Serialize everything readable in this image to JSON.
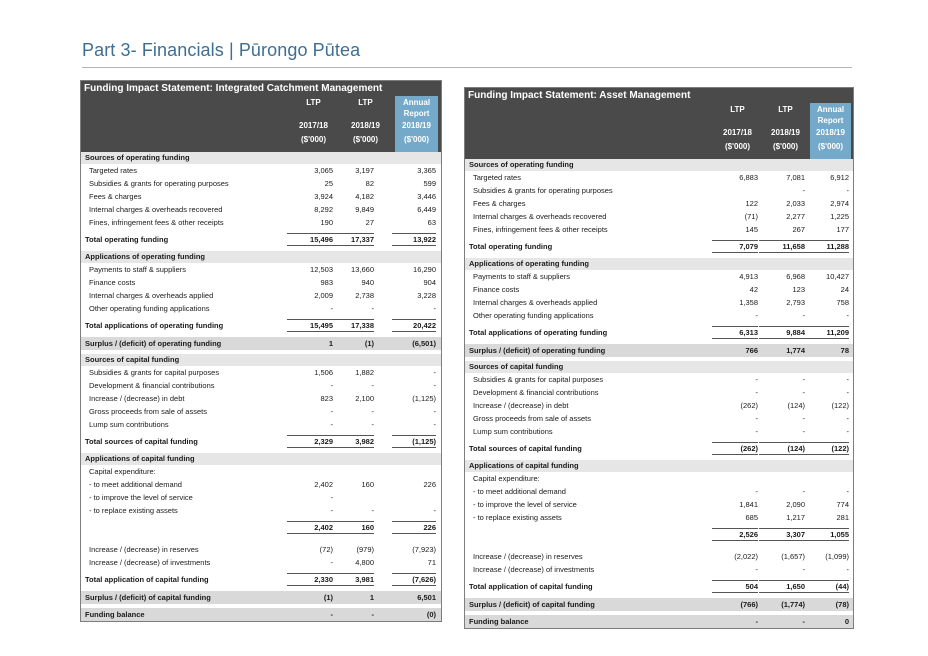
{
  "page": {
    "title": "Part 3- Financials | Pūrongo Pūtea"
  },
  "left": {
    "title": "Funding Impact Statement: Integrated Catchment Management",
    "headers": {
      "c1": [
        "LTP",
        "",
        "2017/18",
        "($'000)"
      ],
      "c2": [
        "LTP",
        "",
        "2018/19",
        "($'000)"
      ],
      "c3": [
        "Annual",
        "Report",
        "2018/19",
        "($'000)"
      ]
    },
    "rows": [
      {
        "type": "band",
        "label": "Sources of operating funding"
      },
      {
        "type": "item",
        "label": "Targeted rates",
        "v": [
          "3,065",
          "3,197",
          "3,365"
        ]
      },
      {
        "type": "item",
        "label": "Subsidies & grants for operating purposes",
        "v": [
          "25",
          "82",
          "599"
        ]
      },
      {
        "type": "item",
        "label": "Fees & charges",
        "v": [
          "3,924",
          "4,182",
          "3,446"
        ]
      },
      {
        "type": "item",
        "label": "Internal charges & overheads recovered",
        "v": [
          "8,292",
          "9,849",
          "6,449"
        ]
      },
      {
        "type": "item",
        "label": "Fines, infringement fees & other receipts",
        "v": [
          "190",
          "27",
          "63"
        ]
      },
      {
        "type": "gap"
      },
      {
        "type": "total",
        "label": "Total operating funding",
        "v": [
          "15,496",
          "17,337",
          "13,922"
        ]
      },
      {
        "type": "gap"
      },
      {
        "type": "band",
        "label": "Applications of operating funding"
      },
      {
        "type": "item",
        "label": "Payments to staff & suppliers",
        "v": [
          "12,503",
          "13,660",
          "16,290"
        ]
      },
      {
        "type": "item",
        "label": "Finance costs",
        "v": [
          "983",
          "940",
          "904"
        ]
      },
      {
        "type": "item",
        "label": "Internal charges & overheads applied",
        "v": [
          "2,009",
          "2,738",
          "3,228"
        ]
      },
      {
        "type": "item",
        "label": "Other operating funding applications",
        "v": [
          "-",
          "-",
          "-"
        ]
      },
      {
        "type": "gap"
      },
      {
        "type": "total",
        "label": "Total applications of operating funding",
        "v": [
          "15,495",
          "17,338",
          "20,422"
        ]
      },
      {
        "type": "gap"
      },
      {
        "type": "banddark",
        "label": "Surplus / (deficit) of operating funding",
        "v": [
          "1",
          "(1)",
          "(6,501)"
        ]
      },
      {
        "type": "gap"
      },
      {
        "type": "band",
        "label": "Sources of capital funding"
      },
      {
        "type": "item",
        "label": "Subsidies & grants for capital purposes",
        "v": [
          "1,506",
          "1,882",
          "-"
        ]
      },
      {
        "type": "item",
        "label": "Development & financial contributions",
        "v": [
          "-",
          "-",
          "-"
        ]
      },
      {
        "type": "item",
        "label": "Increase / (decrease) in debt",
        "v": [
          "823",
          "2,100",
          "(1,125)"
        ]
      },
      {
        "type": "item",
        "label": "Gross proceeds from sale of assets",
        "v": [
          "-",
          "-",
          "-"
        ]
      },
      {
        "type": "item",
        "label": "Lump sum contributions",
        "v": [
          "-",
          "-",
          "-"
        ]
      },
      {
        "type": "gap"
      },
      {
        "type": "total",
        "label": "Total sources of capital funding",
        "v": [
          "2,329",
          "3,982",
          "(1,125)"
        ]
      },
      {
        "type": "gap"
      },
      {
        "type": "band",
        "label": "Applications of capital funding"
      },
      {
        "type": "item",
        "label": "Capital expenditure:",
        "v": [
          "",
          "",
          ""
        ]
      },
      {
        "type": "item",
        "label": "- to meet additional demand",
        "v": [
          "2,402",
          "160",
          "226"
        ]
      },
      {
        "type": "item",
        "label": "- to improve the level of service",
        "v": [
          "-",
          "",
          ""
        ]
      },
      {
        "type": "item",
        "label": "- to replace existing assets",
        "v": [
          "-",
          "-",
          "-"
        ]
      },
      {
        "type": "gap"
      },
      {
        "type": "total",
        "label": "",
        "v": [
          "2,402",
          "160",
          "226"
        ]
      },
      {
        "type": "gap"
      },
      {
        "type": "gap"
      },
      {
        "type": "item",
        "label": "Increase / (decrease) in reserves",
        "v": [
          "(72)",
          "(979)",
          "(7,923)"
        ]
      },
      {
        "type": "item",
        "label": "Increase / (decrease) of investments",
        "v": [
          "-",
          "4,800",
          "71"
        ]
      },
      {
        "type": "gap"
      },
      {
        "type": "total",
        "label": "Total application of capital funding",
        "v": [
          "2,330",
          "3,981",
          "(7,626)"
        ]
      },
      {
        "type": "gap"
      },
      {
        "type": "banddark",
        "label": "Surplus / (deficit) of capital funding",
        "v": [
          "(1)",
          "1",
          "6,501"
        ]
      },
      {
        "type": "gap"
      },
      {
        "type": "banddark",
        "label": "Funding balance",
        "v": [
          "-",
          "-",
          "(0)"
        ]
      }
    ]
  },
  "right": {
    "title": "Funding Impact Statement: Asset Management",
    "headers": {
      "c1": [
        "LTP",
        "",
        "2017/18",
        "($'000)"
      ],
      "c2": [
        "LTP",
        "",
        "2018/19",
        "($'000)"
      ],
      "c3": [
        "Annual",
        "Report",
        "2018/19",
        "($'000)"
      ]
    },
    "rows": [
      {
        "type": "band",
        "label": "Sources of operating funding"
      },
      {
        "type": "item",
        "label": "Targeted rates",
        "v": [
          "6,883",
          "7,081",
          "6,912"
        ]
      },
      {
        "type": "item",
        "label": "Subsidies & grants for operating purposes",
        "v": [
          "",
          "-",
          "-"
        ]
      },
      {
        "type": "item",
        "label": "Fees & charges",
        "v": [
          "122",
          "2,033",
          "2,974"
        ]
      },
      {
        "type": "item",
        "label": "Internal charges & overheads recovered",
        "v": [
          "(71)",
          "2,277",
          "1,225"
        ]
      },
      {
        "type": "item",
        "label": "Fines, infringement fees & other receipts",
        "v": [
          "145",
          "267",
          "177"
        ]
      },
      {
        "type": "gap"
      },
      {
        "type": "total",
        "label": "Total operating funding",
        "v": [
          "7,079",
          "11,658",
          "11,288"
        ]
      },
      {
        "type": "gap"
      },
      {
        "type": "band",
        "label": "Applications of operating funding"
      },
      {
        "type": "item",
        "label": "Payments to staff & suppliers",
        "v": [
          "4,913",
          "6,968",
          "10,427"
        ]
      },
      {
        "type": "item",
        "label": "Finance costs",
        "v": [
          "42",
          "123",
          "24"
        ]
      },
      {
        "type": "item",
        "label": "Internal charges & overheads applied",
        "v": [
          "1,358",
          "2,793",
          "758"
        ]
      },
      {
        "type": "item",
        "label": "Other operating funding applications",
        "v": [
          "-",
          "-",
          "-"
        ]
      },
      {
        "type": "gap"
      },
      {
        "type": "total",
        "label": "Total applications of operating funding",
        "v": [
          "6,313",
          "9,884",
          "11,209"
        ]
      },
      {
        "type": "gap"
      },
      {
        "type": "banddark",
        "label": "Surplus / (deficit) of operating funding",
        "v": [
          "766",
          "1,774",
          "78"
        ]
      },
      {
        "type": "gap"
      },
      {
        "type": "band",
        "label": "Sources of capital funding"
      },
      {
        "type": "item",
        "label": "Subsidies & grants for capital purposes",
        "v": [
          "-",
          "-",
          "-"
        ]
      },
      {
        "type": "item",
        "label": "Development & financial contributions",
        "v": [
          "-",
          "-",
          "-"
        ]
      },
      {
        "type": "item",
        "label": "Increase / (decrease) in debt",
        "v": [
          "(262)",
          "(124)",
          "(122)"
        ]
      },
      {
        "type": "item",
        "label": "Gross proceeds from sale of assets",
        "v": [
          "-",
          "-",
          "-"
        ]
      },
      {
        "type": "item",
        "label": "Lump sum contributions",
        "v": [
          "-",
          "-",
          "-"
        ]
      },
      {
        "type": "gap"
      },
      {
        "type": "total",
        "label": "Total sources of capital funding",
        "v": [
          "(262)",
          "(124)",
          "(122)"
        ]
      },
      {
        "type": "gap"
      },
      {
        "type": "band",
        "label": "Applications of capital funding"
      },
      {
        "type": "item",
        "label": "Capital expenditure:",
        "v": [
          "",
          "",
          ""
        ]
      },
      {
        "type": "item",
        "label": "- to meet additional demand",
        "v": [
          "-",
          "-",
          "-"
        ]
      },
      {
        "type": "item",
        "label": "- to improve the level of service",
        "v": [
          "1,841",
          "2,090",
          "774"
        ]
      },
      {
        "type": "item",
        "label": "- to replace existing assets",
        "v": [
          "685",
          "1,217",
          "281"
        ]
      },
      {
        "type": "gap"
      },
      {
        "type": "total",
        "label": "",
        "v": [
          "2,526",
          "3,307",
          "1,055"
        ]
      },
      {
        "type": "gap"
      },
      {
        "type": "gap"
      },
      {
        "type": "item",
        "label": "Increase / (decrease) in reserves",
        "v": [
          "(2,022)",
          "(1,657)",
          "(1,099)"
        ]
      },
      {
        "type": "item",
        "label": "Increase / (decrease) of investments",
        "v": [
          "-",
          "-",
          "-"
        ]
      },
      {
        "type": "gap"
      },
      {
        "type": "total",
        "label": "Total application of capital funding",
        "v": [
          "504",
          "1,650",
          "(44)"
        ]
      },
      {
        "type": "gap"
      },
      {
        "type": "banddark",
        "label": "Surplus / (deficit) of capital funding",
        "v": [
          "(766)",
          "(1,774)",
          "(78)"
        ]
      },
      {
        "type": "gap"
      },
      {
        "type": "banddark",
        "label": "Funding balance",
        "v": [
          "-",
          "-",
          "0"
        ]
      }
    ]
  }
}
